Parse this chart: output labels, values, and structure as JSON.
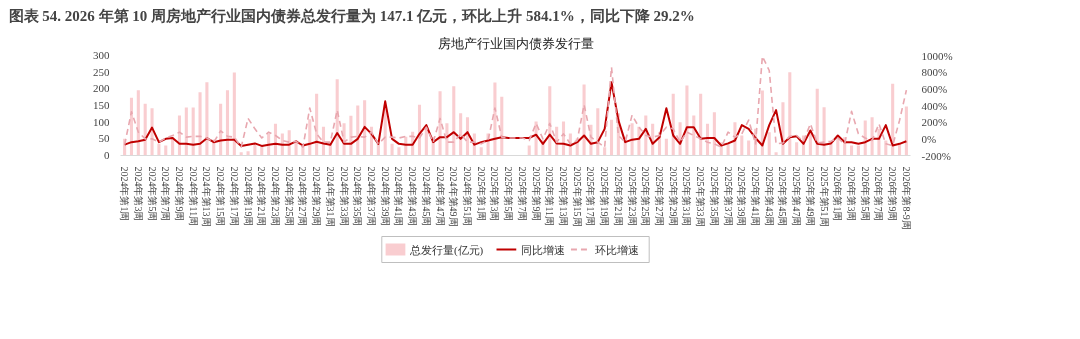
{
  "chart_data": {
    "type": "bar",
    "title": "图表 54. 2026 年第 10 周房地产行业国内债券总发行量为 147.1 亿元，环比上升 584.1%，同比下降 29.2%",
    "subtitle": "房地产行业国内债券发行量",
    "categories": [
      "2024年第1周",
      null,
      "2024年第3周",
      null,
      "2024年第5周",
      null,
      "2024年第7周",
      null,
      "2024年第9周",
      null,
      "2024年第11周",
      null,
      "2024年第13周",
      null,
      "2024年第15周",
      null,
      "2024年第17周",
      null,
      "2024年第19周",
      null,
      "2024年第21周",
      null,
      "2024年第23周",
      null,
      "2024年第25周",
      null,
      "2024年第27周",
      null,
      "2024年第29周",
      null,
      "2024年第31周",
      null,
      "2024年第33周",
      null,
      "2024年第35周",
      null,
      "2024年第37周",
      null,
      "2024年第39周",
      null,
      "2024年第41周",
      null,
      "2024年第43周",
      null,
      "2024年第45周",
      null,
      "2024年第47周",
      null,
      "2024年第49周",
      null,
      "2024年第51周",
      null,
      "2025年第1周",
      null,
      "2025年第3周",
      null,
      "2025年第5周",
      null,
      "2025年第7周",
      null,
      "2025年第9周",
      null,
      "2025年第11周",
      null,
      "2025年第13周",
      null,
      "2025年第15周",
      null,
      "2025年第17周",
      null,
      "2025年第19周",
      null,
      "2025年第21周",
      null,
      "2025年第23周",
      null,
      "2025年第25周",
      null,
      "2025年第27周",
      null,
      "2025年第29周",
      null,
      "2025年第31周",
      null,
      "2025年第33周",
      null,
      "2025年第35周",
      null,
      "2025年第37周",
      null,
      "2025年第39周",
      null,
      "2025年第41周",
      null,
      "2025年第43周",
      null,
      "2025年第45周",
      null,
      "2025年第47周",
      null,
      "2025年第49周",
      null,
      "2025年第51周",
      null,
      "2026年第1周",
      null,
      "2026年第3周",
      null,
      "2026年第5周",
      null,
      "2026年第7周",
      null,
      "2026年第9周",
      null,
      "2026年第8-9周"
    ],
    "series": [
      {
        "name": "总发行量(亿元)",
        "color": "#f9cdd0",
        "values": [
          50,
          173,
          196,
          155,
          142,
          35,
          30,
          56,
          120,
          144,
          144,
          190,
          220,
          48,
          155,
          196,
          249,
          10,
          13,
          35,
          30,
          66,
          95,
          66,
          76,
          46,
          30,
          109,
          185,
          86,
          35,
          229,
          97,
          119,
          150,
          166,
          86,
          35,
          152,
          35,
          25,
          56,
          71,
          152,
          86,
          56,
          193,
          97,
          208,
          127,
          115,
          66,
          25,
          66,
          219,
          176,
          null,
          null,
          null,
          30,
          102,
          46,
          208,
          86,
          102,
          66,
          51,
          213,
          92,
          142,
          25,
          107,
          127,
          56,
          97,
          86,
          120,
          95,
          70,
          50,
          185,
          100,
          210,
          120,
          185,
          95,
          130,
          40,
          35,
          100,
          60,
          45,
          80,
          195,
          70,
          10,
          160,
          250,
          40,
          60,
          75,
          200,
          145,
          40,
          55,
          55,
          30,
          30,
          105,
          115,
          80,
          45,
          215,
          35,
          147.1
        ]
      },
      {
        "name": "同比增速",
        "type": "line",
        "axis": "y2",
        "line_style": "solid",
        "color": "#c00000",
        "values": [
          -70,
          -40,
          -30,
          -10,
          135,
          -40,
          0,
          10,
          -60,
          -60,
          -70,
          -60,
          8,
          -40,
          -20,
          -10,
          -10,
          -85,
          -70,
          -55,
          -85,
          -70,
          -60,
          -70,
          -70,
          -30,
          -80,
          -60,
          -35,
          -55,
          -70,
          70,
          -60,
          -60,
          0,
          143,
          60,
          -60,
          450,
          0,
          -60,
          -70,
          -70,
          60,
          165,
          -40,
          20,
          20,
          80,
          0,
          80,
          -70,
          -40,
          -20,
          0,
          20,
          10,
          10,
          10,
          10,
          50,
          -60,
          50,
          -55,
          -60,
          -80,
          -40,
          40,
          -60,
          -40,
          120,
          680,
          225,
          -40,
          -10,
          0,
          120,
          -60,
          20,
          367,
          40,
          -60,
          140,
          140,
          0,
          10,
          10,
          -80,
          -55,
          -20,
          165,
          120,
          10,
          -80,
          165,
          345,
          -60,
          20,
          30,
          -60,
          100,
          -60,
          -70,
          -55,
          40,
          -40,
          -40,
          -60,
          -40,
          0,
          0,
          165,
          -80,
          -60,
          -29.2
        ]
      },
      {
        "name": "环比增速",
        "type": "line",
        "axis": "y2",
        "line_style": "dashed",
        "color": "#e8a7af",
        "values": [
          -70,
          325,
          80,
          0,
          0,
          -40,
          10,
          40,
          80,
          20,
          30,
          30,
          10,
          -40,
          95,
          30,
          20,
          -100,
          245,
          120,
          10,
          80,
          40,
          -20,
          -40,
          -30,
          -100,
          370,
          60,
          -40,
          -40,
          345,
          -40,
          20,
          30,
          20,
          80,
          -60,
          20,
          20,
          10,
          30,
          30,
          10,
          140,
          -40,
          245,
          -40,
          -40,
          60,
          -40,
          -40,
          -60,
          -20,
          370,
          20,
          10,
          10,
          10,
          -20,
          185,
          0,
          185,
          -40,
          60,
          -60,
          -20,
          410,
          20,
          -40,
          -100,
          860,
          40,
          -40,
          285,
          140,
          40,
          20,
          40,
          140,
          120,
          -40,
          80,
          40,
          0,
          -40,
          -60,
          -100,
          80,
          20,
          60,
          225,
          -60,
          990,
          820,
          -60,
          -50,
          30,
          40,
          -30,
          180,
          -50,
          -40,
          -30,
          10,
          -60,
          330,
          60,
          10,
          -20,
          180,
          -60,
          -80,
          220,
          584.1
        ]
      }
    ],
    "ylim": [
      0,
      300
    ],
    "yticks": [
      0,
      50,
      100,
      150,
      200,
      250,
      300
    ],
    "y2lim": [
      -200,
      1000
    ],
    "y2ticks": [
      {
        "value": -200,
        "label": "-200%"
      },
      {
        "value": 0,
        "label": "0%"
      },
      {
        "value": 200,
        "label": "200%"
      },
      {
        "value": 400,
        "label": "400%"
      },
      {
        "value": 600,
        "label": "600%"
      },
      {
        "value": 800,
        "label": "800%"
      },
      {
        "value": 1000,
        "label": "1000%"
      }
    ],
    "legend": "bottom"
  }
}
